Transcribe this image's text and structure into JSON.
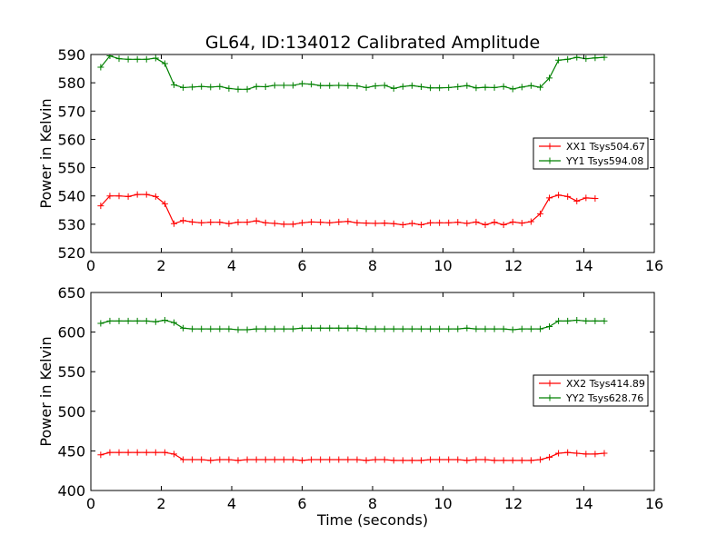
{
  "figure": {
    "title": "GL64, ID:134012 Calibrated Amplitude"
  },
  "chart_data": [
    {
      "type": "line",
      "title": "GL64, ID:134012 Calibrated Amplitude",
      "xlabel": "",
      "ylabel": "Power in Kelvin",
      "xlim": [
        0,
        16
      ],
      "ylim": [
        520,
        590
      ],
      "xticks": [
        0,
        2,
        4,
        6,
        8,
        10,
        12,
        14,
        16
      ],
      "yticks": [
        520,
        530,
        540,
        550,
        560,
        570,
        580,
        590
      ],
      "grid": false,
      "legend_position": "center-right",
      "series": [
        {
          "name": "XX1 Tsys504.67",
          "color": "#ff0000",
          "marker": "+",
          "values": [
            536.5,
            540,
            540,
            539.8,
            540.5,
            540.5,
            539.8,
            537.2,
            530.2,
            531.3,
            530.8,
            530.5,
            530.7,
            530.7,
            530.2,
            530.7,
            530.7,
            531.2,
            530.5,
            530.3,
            530.0,
            530.0,
            530.5,
            530.8,
            530.7,
            530.5,
            530.8,
            531.0,
            530.5,
            530.4,
            530.3,
            530.4,
            530.2,
            529.8,
            530.3,
            529.8,
            530.5,
            530.5,
            530.5,
            530.7,
            530.3,
            530.8,
            529.8,
            530.7,
            529.8,
            530.8,
            530.4,
            530.9,
            533.7,
            539.3,
            540.3,
            539.8,
            538.2,
            539.3,
            539.1
          ]
        },
        {
          "name": "YY1 Tsys594.08",
          "color": "#008000",
          "marker": "+",
          "values": [
            585.5,
            589.5,
            588.5,
            588.3,
            588.3,
            588.3,
            588.7,
            586.8,
            579.3,
            578.3,
            578.5,
            578.7,
            578.5,
            578.7,
            578.0,
            577.7,
            577.7,
            578.7,
            578.6,
            579.1,
            579.1,
            579.1,
            579.7,
            579.5,
            579.0,
            579.0,
            579.1,
            579.0,
            578.9,
            578.3,
            578.9,
            579.1,
            578.0,
            578.7,
            579.0,
            578.6,
            578.2,
            578.2,
            578.3,
            578.6,
            579.0,
            578.2,
            578.4,
            578.3,
            578.7,
            577.8,
            578.5,
            579.0,
            578.4,
            581.7,
            588.0,
            588.3,
            589.0,
            588.5,
            588.8,
            589.0
          ]
        }
      ]
    },
    {
      "type": "line",
      "title": "",
      "xlabel": "Time (seconds)",
      "ylabel": "Power in Kelvin",
      "xlim": [
        0,
        16
      ],
      "ylim": [
        400,
        650
      ],
      "xticks": [
        0,
        2,
        4,
        6,
        8,
        10,
        12,
        14,
        16
      ],
      "yticks": [
        400,
        450,
        500,
        550,
        600,
        650
      ],
      "grid": false,
      "legend_position": "center-right",
      "series": [
        {
          "name": "XX2 Tsys414.89",
          "color": "#ff0000",
          "marker": "+",
          "values": [
            445,
            448,
            448,
            448,
            448,
            448,
            448,
            448,
            446,
            439,
            439,
            439,
            438,
            439,
            439,
            438,
            439,
            439,
            439,
            439,
            439,
            439,
            438,
            439,
            439,
            439,
            439,
            439,
            439,
            438,
            439,
            439,
            438,
            438,
            438,
            438,
            439,
            439,
            439,
            439,
            438,
            439,
            439,
            438,
            438,
            438,
            438,
            438,
            439,
            442,
            447,
            448,
            447,
            446,
            446,
            447
          ]
        },
        {
          "name": "YY2 Tsys628.76",
          "color": "#008000",
          "marker": "+",
          "values": [
            611,
            614,
            614,
            614,
            614,
            614,
            613,
            615,
            612,
            605,
            604,
            604,
            604,
            604,
            604,
            603,
            603,
            604,
            604,
            604,
            604,
            604,
            605,
            605,
            605,
            605,
            605,
            605,
            605,
            604,
            604,
            604,
            604,
            604,
            604,
            604,
            604,
            604,
            604,
            604,
            605,
            604,
            604,
            604,
            604,
            603,
            604,
            604,
            604,
            607,
            614,
            614,
            615,
            614,
            614,
            614
          ]
        }
      ]
    }
  ]
}
